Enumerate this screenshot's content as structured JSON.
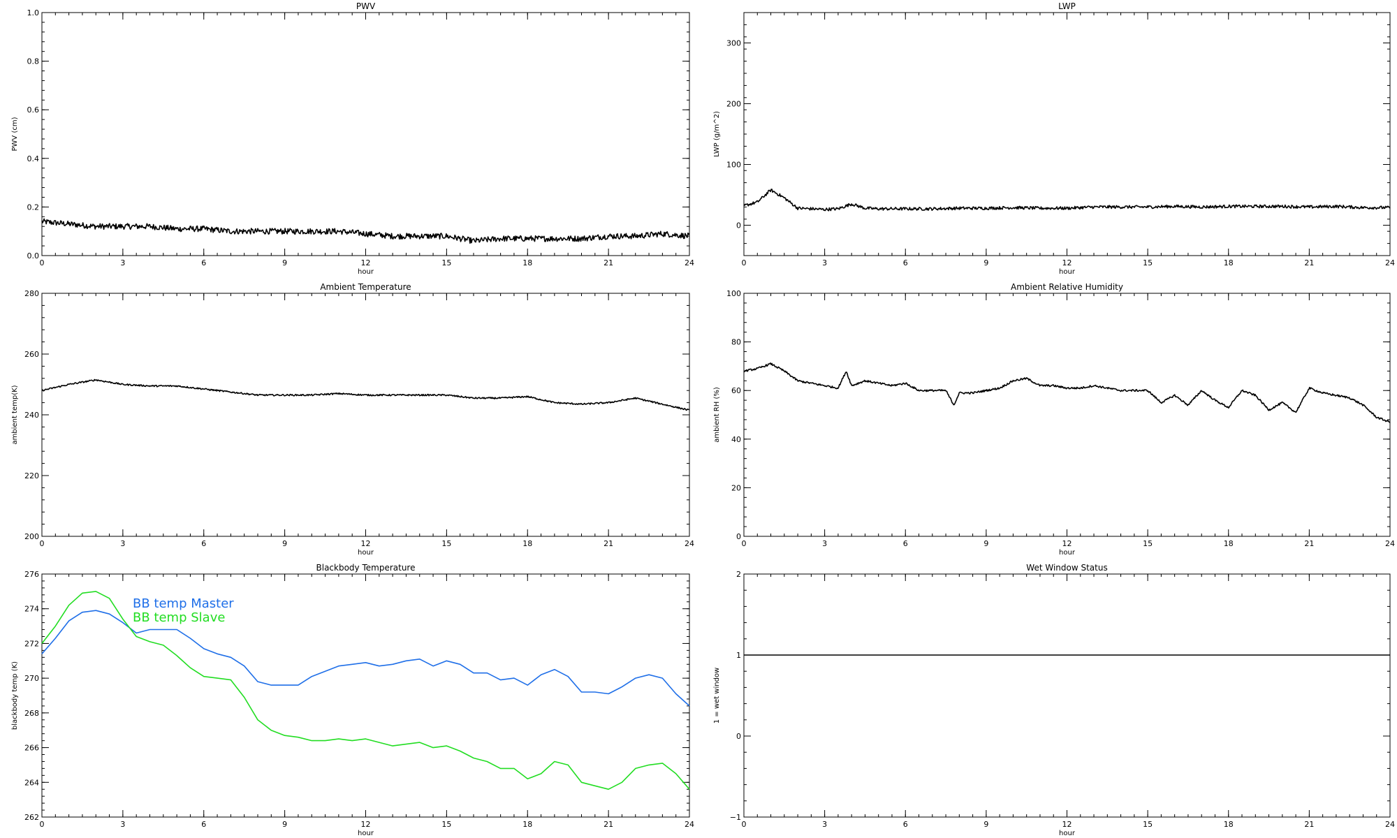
{
  "chart_data": [
    {
      "type": "line",
      "title": "PWV",
      "xlabel": "hour",
      "ylabel": "PWV (cm)",
      "xlim": [
        0,
        24
      ],
      "ylim": [
        0,
        1.0
      ],
      "xticks": [
        0,
        3,
        6,
        9,
        12,
        15,
        18,
        21,
        24
      ],
      "yticks": [
        0.0,
        0.2,
        0.4,
        0.6,
        0.8,
        1.0
      ],
      "ytick_labels": [
        "0.0",
        "0.2",
        "0.4",
        "0.6",
        "0.8",
        "1.0"
      ],
      "series": [
        {
          "color": "#000000",
          "noise": 0.012,
          "x": [
            0,
            1,
            2,
            3,
            4,
            5,
            6,
            7,
            8,
            9,
            10,
            11,
            12,
            13,
            14,
            15,
            16,
            17,
            18,
            19,
            20,
            21,
            22,
            23,
            24
          ],
          "values": [
            0.14,
            0.13,
            0.12,
            0.12,
            0.12,
            0.11,
            0.11,
            0.1,
            0.1,
            0.1,
            0.1,
            0.1,
            0.09,
            0.08,
            0.08,
            0.08,
            0.06,
            0.07,
            0.07,
            0.07,
            0.07,
            0.08,
            0.08,
            0.09,
            0.08
          ]
        }
      ]
    },
    {
      "type": "line",
      "title": "LWP",
      "xlabel": "hour",
      "ylabel": "LWP (g/m^2)",
      "xlim": [
        0,
        24
      ],
      "ylim": [
        -50,
        350
      ],
      "xticks": [
        0,
        3,
        6,
        9,
        12,
        15,
        18,
        21,
        24
      ],
      "yticks": [
        0,
        100,
        200,
        300
      ],
      "ytick_labels": [
        "0",
        "100",
        "200",
        "300"
      ],
      "series": [
        {
          "color": "#000000",
          "noise": 2.5,
          "x": [
            0,
            0.5,
            1,
            1.5,
            2,
            3,
            3.5,
            4,
            4.5,
            5,
            6,
            7,
            8,
            9,
            10,
            11,
            12,
            13,
            14,
            15,
            16,
            17,
            18,
            19,
            20,
            21,
            22,
            23,
            24
          ],
          "values": [
            32,
            38,
            58,
            45,
            28,
            26,
            27,
            35,
            28,
            27,
            27,
            27,
            28,
            28,
            29,
            28,
            28,
            30,
            30,
            30,
            31,
            30,
            31,
            31,
            31,
            30,
            31,
            29,
            29
          ]
        }
      ]
    },
    {
      "type": "line",
      "title": "Ambient Temperature",
      "xlabel": "hour",
      "ylabel": "ambient temp(K)",
      "xlim": [
        0,
        24
      ],
      "ylim": [
        200,
        280
      ],
      "xticks": [
        0,
        3,
        6,
        9,
        12,
        15,
        18,
        21,
        24
      ],
      "yticks": [
        200,
        220,
        240,
        260,
        280
      ],
      "ytick_labels": [
        "200",
        "220",
        "240",
        "260",
        "280"
      ],
      "series": [
        {
          "color": "#000000",
          "noise": 0.25,
          "x": [
            0,
            1,
            2,
            3,
            4,
            5,
            6,
            7,
            8,
            9,
            10,
            11,
            12,
            13,
            14,
            15,
            16,
            17,
            18,
            19,
            20,
            21,
            22,
            23,
            24
          ],
          "values": [
            248,
            250,
            251.5,
            250,
            249.5,
            249.5,
            248.5,
            247.5,
            246.5,
            246.5,
            246.5,
            247,
            246.5,
            246.5,
            246.5,
            246.5,
            245.5,
            245.5,
            246,
            244,
            243.5,
            244,
            245.5,
            243.5,
            241.5
          ]
        }
      ]
    },
    {
      "type": "line",
      "title": "Ambient Relative Humidity",
      "xlabel": "hour",
      "ylabel": "ambient RH (%)",
      "xlim": [
        0,
        24
      ],
      "ylim": [
        0,
        100
      ],
      "xticks": [
        0,
        3,
        6,
        9,
        12,
        15,
        18,
        21,
        24
      ],
      "yticks": [
        0,
        20,
        40,
        60,
        80,
        100
      ],
      "ytick_labels": [
        "0",
        "20",
        "40",
        "60",
        "80",
        "100"
      ],
      "series": [
        {
          "color": "#000000",
          "noise": 0.4,
          "x": [
            0,
            0.5,
            1,
            1.5,
            2,
            2.5,
            3,
            3.5,
            3.8,
            4,
            4.5,
            5,
            5.5,
            6,
            6.5,
            7,
            7.5,
            7.8,
            8,
            8.5,
            9,
            9.5,
            10,
            10.5,
            11,
            11.5,
            12,
            12.5,
            13,
            13.5,
            14,
            14.5,
            15,
            15.5,
            16,
            16.5,
            17,
            17.5,
            18,
            18.5,
            19,
            19.5,
            20,
            20.5,
            21,
            21.5,
            22,
            22.5,
            23,
            23.5,
            24
          ],
          "values": [
            68,
            69,
            71,
            68,
            64,
            63,
            62,
            61,
            68,
            62,
            64,
            63,
            62,
            63,
            60,
            60,
            60,
            54,
            59,
            59,
            60,
            61,
            64,
            65,
            62,
            62,
            61,
            61,
            62,
            61,
            60,
            60,
            60,
            55,
            58,
            54,
            60,
            56,
            53,
            60,
            58,
            52,
            55,
            51,
            61,
            59,
            58,
            57,
            54,
            49,
            47
          ]
        }
      ]
    },
    {
      "type": "line",
      "title": "Blackbody Temperature",
      "xlabel": "hour",
      "ylabel": "blackbody temp (K)",
      "xlim": [
        0,
        24
      ],
      "ylim": [
        262,
        276
      ],
      "xticks": [
        0,
        3,
        6,
        9,
        12,
        15,
        18,
        21,
        24
      ],
      "yticks": [
        262,
        264,
        266,
        268,
        270,
        272,
        274,
        276
      ],
      "ytick_labels": [
        "262",
        "264",
        "266",
        "268",
        "270",
        "272",
        "274",
        "276"
      ],
      "legend": "top-left",
      "series": [
        {
          "name": "BB temp Master",
          "color": "#1f6fe8",
          "noise": 0,
          "x": [
            0,
            0.5,
            1,
            1.5,
            2,
            2.5,
            3,
            3.5,
            4,
            4.5,
            5,
            5.5,
            6,
            6.5,
            7,
            7.5,
            8,
            8.5,
            9,
            9.5,
            10,
            10.5,
            11,
            11.5,
            12,
            12.5,
            13,
            13.5,
            14,
            14.5,
            15,
            15.5,
            16,
            16.5,
            17,
            17.5,
            18,
            18.5,
            19,
            19.5,
            20,
            20.5,
            21,
            21.5,
            22,
            22.5,
            23,
            23.5,
            24
          ],
          "values": [
            271.4,
            272.3,
            273.3,
            273.8,
            273.9,
            273.7,
            273.2,
            272.6,
            272.8,
            272.8,
            272.8,
            272.3,
            271.7,
            271.4,
            271.2,
            270.7,
            269.8,
            269.6,
            269.6,
            269.6,
            270.1,
            270.4,
            270.7,
            270.8,
            270.9,
            270.7,
            270.8,
            271.0,
            271.1,
            270.7,
            271.0,
            270.8,
            270.3,
            270.3,
            269.9,
            270.0,
            269.6,
            270.2,
            270.5,
            270.1,
            269.2,
            269.2,
            269.1,
            269.5,
            270.0,
            270.2,
            270.0,
            269.1,
            268.4
          ]
        },
        {
          "name": "BB temp Slave",
          "color": "#22dd22",
          "noise": 0,
          "x": [
            0,
            0.5,
            1,
            1.5,
            2,
            2.5,
            3,
            3.5,
            4,
            4.5,
            5,
            5.5,
            6,
            6.5,
            7,
            7.5,
            8,
            8.5,
            9,
            9.5,
            10,
            10.5,
            11,
            11.5,
            12,
            12.5,
            13,
            13.5,
            14,
            14.5,
            15,
            15.5,
            16,
            16.5,
            17,
            17.5,
            18,
            18.5,
            19,
            19.5,
            20,
            20.5,
            21,
            21.5,
            22,
            22.5,
            23,
            23.5,
            24
          ],
          "values": [
            272.0,
            273.0,
            274.2,
            274.9,
            275.0,
            274.6,
            273.4,
            272.4,
            272.1,
            271.9,
            271.3,
            270.6,
            270.1,
            270.0,
            269.9,
            268.9,
            267.6,
            267.0,
            266.7,
            266.6,
            266.4,
            266.4,
            266.5,
            266.4,
            266.5,
            266.3,
            266.1,
            266.2,
            266.3,
            266.0,
            266.1,
            265.8,
            265.4,
            265.2,
            264.8,
            264.8,
            264.2,
            264.5,
            265.2,
            265.0,
            264.0,
            263.8,
            263.6,
            264.0,
            264.8,
            265.0,
            265.1,
            264.5,
            263.6
          ]
        }
      ]
    },
    {
      "type": "line",
      "title": "Wet Window Status",
      "xlabel": "hour",
      "ylabel": "1 = wet window",
      "xlim": [
        0,
        24
      ],
      "ylim": [
        -1,
        2
      ],
      "xticks": [
        0,
        3,
        6,
        9,
        12,
        15,
        18,
        21,
        24
      ],
      "yticks": [
        -1,
        0,
        1,
        2
      ],
      "ytick_labels": [
        "−1",
        "0",
        "1",
        "2"
      ],
      "series": [
        {
          "color": "#000000",
          "noise": 0,
          "x": [
            0,
            24
          ],
          "values": [
            1,
            1
          ]
        }
      ]
    }
  ]
}
